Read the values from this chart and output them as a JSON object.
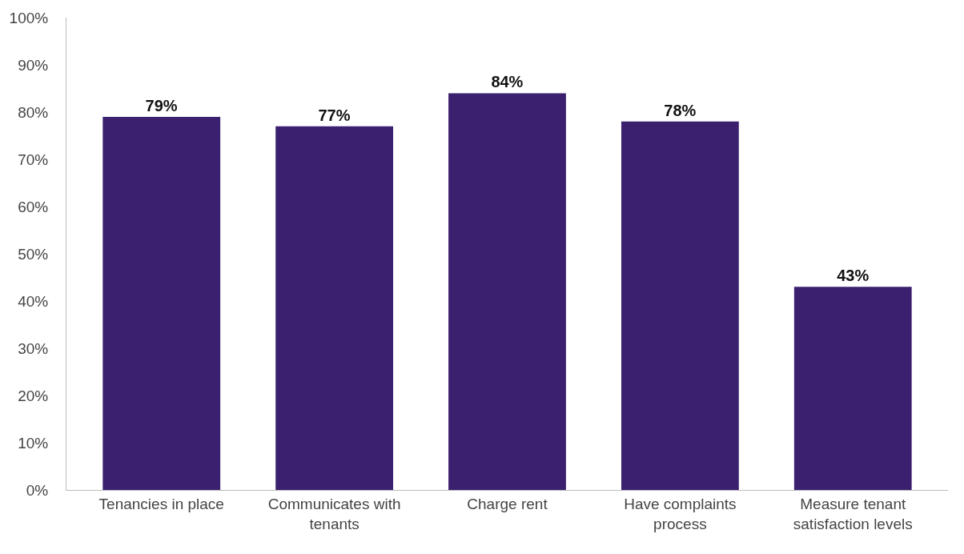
{
  "chart_data": {
    "type": "bar",
    "categories": [
      "Tenancies in place",
      "Communicates with tenants",
      "Charge rent",
      "Have complaints process",
      "Measure tenant satisfaction levels"
    ],
    "values": [
      79,
      77,
      84,
      78,
      43
    ],
    "value_labels": [
      "79%",
      "77%",
      "84%",
      "78%",
      "43%"
    ],
    "color": "#3b2070",
    "ylim": [
      0,
      100
    ],
    "yticks": [
      {
        "value": 0,
        "label": "0%"
      },
      {
        "value": 10,
        "label": "10%"
      },
      {
        "value": 20,
        "label": "20%"
      },
      {
        "value": 30,
        "label": "30%"
      },
      {
        "value": 40,
        "label": "40%"
      },
      {
        "value": 50,
        "label": "50%"
      },
      {
        "value": 60,
        "label": "60%"
      },
      {
        "value": 70,
        "label": "70%"
      },
      {
        "value": 80,
        "label": "80%"
      },
      {
        "value": 90,
        "label": "90%"
      },
      {
        "value": 100,
        "label": "100%"
      }
    ],
    "legend": false
  }
}
